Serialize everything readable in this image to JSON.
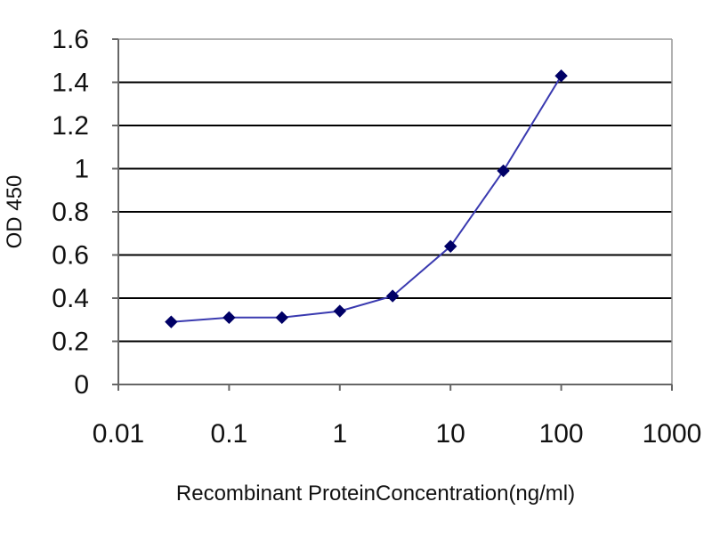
{
  "chart_data": {
    "type": "line",
    "x_scale": "log",
    "x": [
      0.03,
      0.1,
      0.3,
      1,
      3,
      10,
      30,
      100
    ],
    "series": [
      {
        "values": [
          0.29,
          0.31,
          0.31,
          0.34,
          0.41,
          0.64,
          0.99,
          1.43
        ]
      }
    ],
    "xlabel": "Recombinant ProteinConcentration(ng/ml)",
    "ylabel": "OD 450",
    "xlim": [
      0.01,
      1000
    ],
    "ylim": [
      0,
      1.6
    ],
    "x_ticks": [
      0.01,
      0.1,
      1,
      10,
      100,
      1000
    ],
    "x_tick_labels": [
      "0.01",
      "0.1",
      "1",
      "10",
      "100",
      "1000"
    ],
    "y_ticks": [
      0,
      0.2,
      0.4,
      0.6,
      0.8,
      1,
      1.2,
      1.4,
      1.6
    ],
    "y_tick_labels": [
      "0",
      "0.2",
      "0.4",
      "0.6",
      "0.8",
      "1",
      "1.2",
      "1.4",
      "1.6"
    ],
    "grid": "horizontal",
    "line_color": "#3a3ab0",
    "marker_color": "#000066",
    "gridline_color": "#000000",
    "plot_border_color": "#999999"
  }
}
